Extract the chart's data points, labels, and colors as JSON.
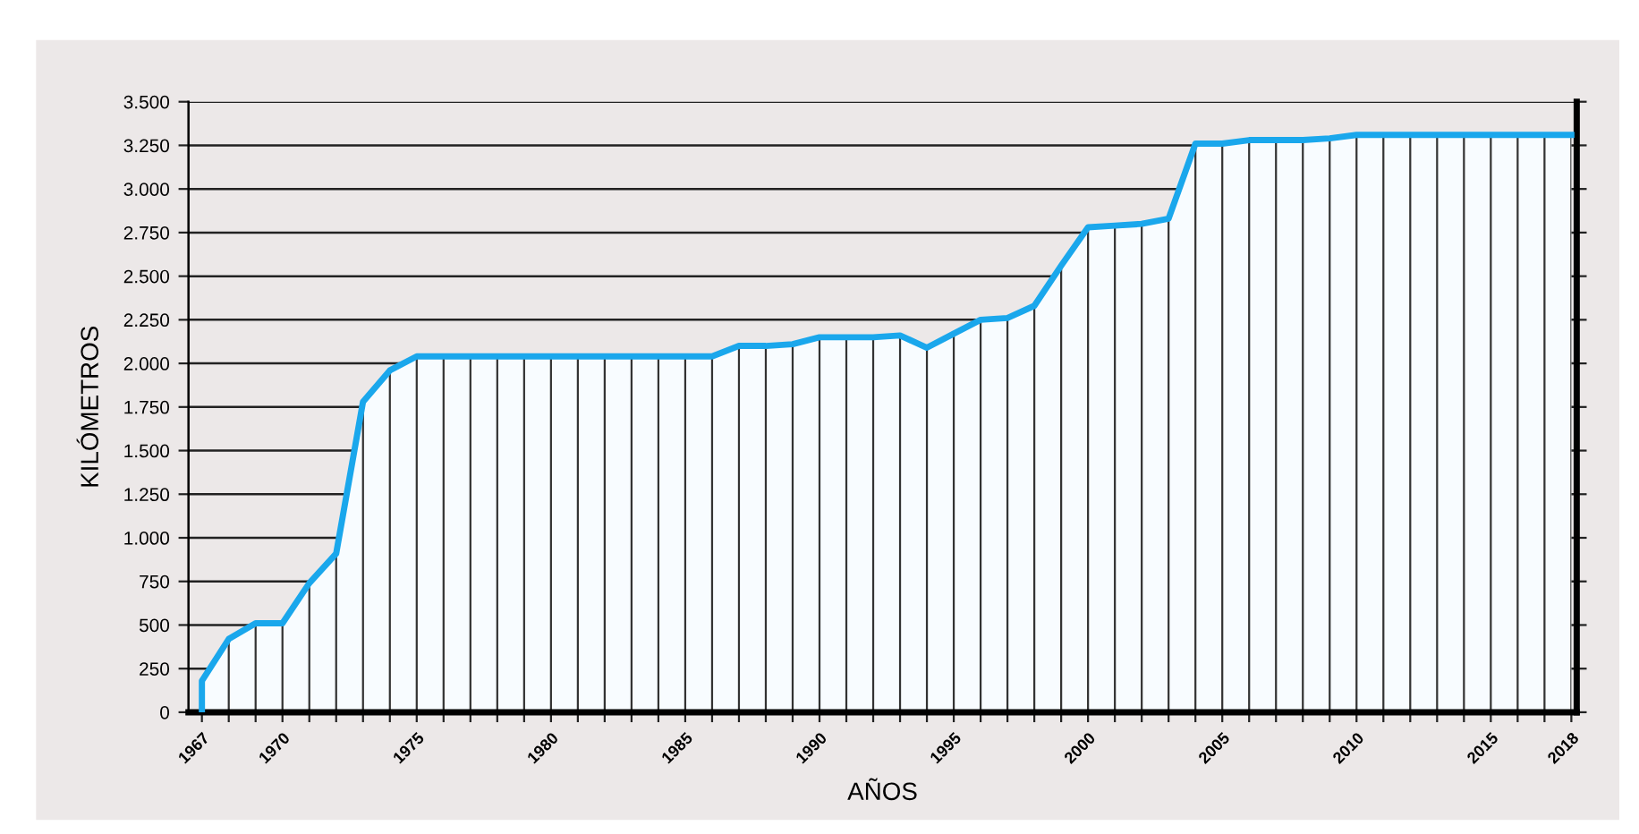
{
  "chart_data": {
    "type": "area",
    "xlabel": "AÑOS",
    "ylabel": "KILÓMETROS",
    "x": [
      1967,
      1967,
      1968,
      1969,
      1970,
      1971,
      1972,
      1973,
      1974,
      1975,
      1976,
      1977,
      1978,
      1979,
      1980,
      1981,
      1982,
      1983,
      1984,
      1985,
      1986,
      1987,
      1988,
      1989,
      1990,
      1991,
      1992,
      1993,
      1994,
      1995,
      1996,
      1997,
      1998,
      1999,
      2000,
      2001,
      2002,
      2003,
      2004,
      2005,
      2006,
      2007,
      2008,
      2009,
      2010,
      2011,
      2012,
      2013,
      2014,
      2015,
      2016,
      2017,
      2018
    ],
    "series": [
      {
        "color": "#1aa7ec",
        "values": [
          0,
          180,
          420,
          510,
          510,
          740,
          910,
          1780,
          1960,
          2040,
          2040,
          2040,
          2040,
          2040,
          2040,
          2040,
          2040,
          2040,
          2040,
          2040,
          2040,
          2100,
          2100,
          2110,
          2150,
          2150,
          2150,
          2160,
          2090,
          2170,
          2250,
          2260,
          2330,
          2560,
          2780,
          2790,
          2800,
          2830,
          3260,
          3260,
          3280,
          3280,
          3280,
          3290,
          3310,
          3310,
          3310,
          3310,
          3310,
          3310,
          3310,
          3310,
          3310
        ]
      }
    ],
    "xlim": [
      1966.5,
      2018.2
    ],
    "xticks": [
      1967,
      {
        "value": 1968,
        "label": null
      },
      {
        "value": 1969,
        "label": null
      },
      1970,
      {
        "value": 1971,
        "label": null
      },
      {
        "value": 1972,
        "label": null
      },
      {
        "value": 1973,
        "label": null
      },
      {
        "value": 1974,
        "label": null
      },
      1975,
      {
        "value": 1976,
        "label": null
      },
      {
        "value": 1977,
        "label": null
      },
      {
        "value": 1978,
        "label": null
      },
      {
        "value": 1979,
        "label": null
      },
      1980,
      {
        "value": 1981,
        "label": null
      },
      {
        "value": 1982,
        "label": null
      },
      {
        "value": 1983,
        "label": null
      },
      {
        "value": 1984,
        "label": null
      },
      1985,
      {
        "value": 1986,
        "label": null
      },
      {
        "value": 1987,
        "label": null
      },
      {
        "value": 1988,
        "label": null
      },
      {
        "value": 1989,
        "label": null
      },
      1990,
      {
        "value": 1991,
        "label": null
      },
      {
        "value": 1992,
        "label": null
      },
      {
        "value": 1993,
        "label": null
      },
      {
        "value": 1994,
        "label": null
      },
      1995,
      {
        "value": 1996,
        "label": null
      },
      {
        "value": 1997,
        "label": null
      },
      {
        "value": 1998,
        "label": null
      },
      {
        "value": 1999,
        "label": null
      },
      2000,
      {
        "value": 2001,
        "label": null
      },
      {
        "value": 2002,
        "label": null
      },
      {
        "value": 2003,
        "label": null
      },
      {
        "value": 2004,
        "label": null
      },
      2005,
      {
        "value": 2006,
        "label": null
      },
      {
        "value": 2007,
        "label": null
      },
      {
        "value": 2008,
        "label": null
      },
      {
        "value": 2009,
        "label": null
      },
      2010,
      {
        "value": 2011,
        "label": null
      },
      {
        "value": 2012,
        "label": null
      },
      {
        "value": 2013,
        "label": null
      },
      {
        "value": 2014,
        "label": null
      },
      2015,
      {
        "value": 2016,
        "label": null
      },
      {
        "value": 2017,
        "label": null
      },
      2018
    ],
    "ylim": [
      0,
      3500
    ],
    "yticks": [
      0,
      250,
      500,
      750,
      {
        "value": 1000,
        "label": "1.000"
      },
      {
        "value": 1250,
        "label": "1.250"
      },
      {
        "value": 1500,
        "label": "1.500"
      },
      {
        "value": 1750,
        "label": "1.750"
      },
      {
        "value": 2000,
        "label": "2.000"
      },
      {
        "value": 2250,
        "label": "2.250"
      },
      {
        "value": 2500,
        "label": "2.500"
      },
      {
        "value": 2750,
        "label": "2.750"
      },
      {
        "value": 3000,
        "label": "3.000"
      },
      {
        "value": 3250,
        "label": "3.250"
      },
      {
        "value": 3500,
        "label": "3.500"
      }
    ],
    "grid": true,
    "marker": "none",
    "line_style": "solid"
  }
}
